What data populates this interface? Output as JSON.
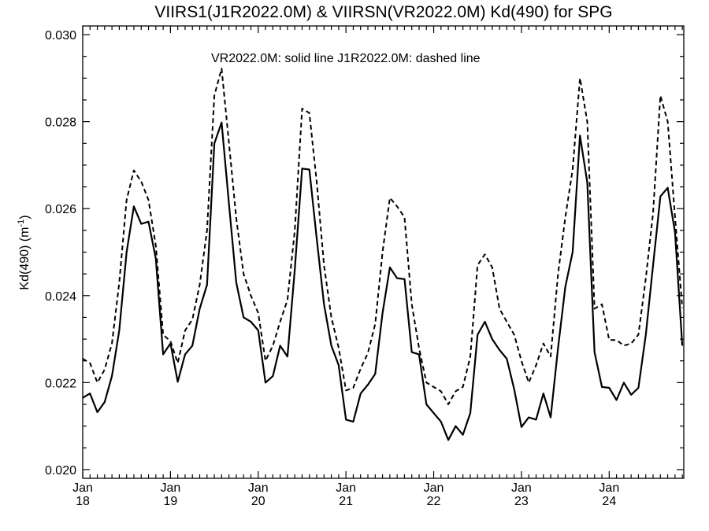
{
  "chart_data": {
    "type": "line",
    "title": "VIIRS1(J1R2022.0M) & VIIRSN(VR2022.0M)  Kd(490) for SPG",
    "annotation": "VR2022.0M: solid line   J1R2022.0M: dashed line",
    "ylabel": "Kd(490) (m",
    "ylabel_sup": "-1",
    "ylabel_close": ")",
    "ylim": [
      0.0198,
      0.0302
    ],
    "yticks": [
      "0.020",
      "0.022",
      "0.024",
      "0.026",
      "0.028",
      "0.030"
    ],
    "xlim": [
      2018.0,
      2024.85
    ],
    "xticks": [
      {
        "x": 2018,
        "month": "Jan",
        "year": "18"
      },
      {
        "x": 2019,
        "month": "Jan",
        "year": "19"
      },
      {
        "x": 2020,
        "month": "Jan",
        "year": "20"
      },
      {
        "x": 2021,
        "month": "Jan",
        "year": "21"
      },
      {
        "x": 2022,
        "month": "Jan",
        "year": "22"
      },
      {
        "x": 2023,
        "month": "Jan",
        "year": "23"
      },
      {
        "x": 2024,
        "month": "Jan",
        "year": "24"
      }
    ],
    "grid": false,
    "series": [
      {
        "name": "VR2022.0M",
        "style": "solid",
        "x": [
          2018.0,
          2018.083,
          2018.167,
          2018.25,
          2018.333,
          2018.417,
          2018.5,
          2018.583,
          2018.667,
          2018.75,
          2018.833,
          2018.917,
          2019.0,
          2019.083,
          2019.167,
          2019.25,
          2019.333,
          2019.417,
          2019.5,
          2019.583,
          2019.667,
          2019.75,
          2019.833,
          2019.917,
          2020.0,
          2020.083,
          2020.167,
          2020.25,
          2020.333,
          2020.417,
          2020.5,
          2020.583,
          2020.667,
          2020.75,
          2020.833,
          2020.917,
          2021.0,
          2021.083,
          2021.167,
          2021.25,
          2021.333,
          2021.417,
          2021.5,
          2021.583,
          2021.667,
          2021.75,
          2021.833,
          2021.917,
          2022.0,
          2022.083,
          2022.167,
          2022.25,
          2022.333,
          2022.417,
          2022.5,
          2022.583,
          2022.667,
          2022.75,
          2022.833,
          2022.917,
          2023.0,
          2023.083,
          2023.167,
          2023.25,
          2023.333,
          2023.417,
          2023.5,
          2023.583,
          2023.667,
          2023.75,
          2023.833,
          2023.917,
          2024.0,
          2024.083,
          2024.167,
          2024.25,
          2024.333,
          2024.417,
          2024.5,
          2024.583,
          2024.667,
          2024.75,
          2024.833
        ],
        "values": [
          0.02165,
          0.02175,
          0.02132,
          0.02155,
          0.02215,
          0.0232,
          0.025,
          0.02605,
          0.02565,
          0.0257,
          0.02485,
          0.02265,
          0.0229,
          0.02202,
          0.02265,
          0.02285,
          0.0237,
          0.02425,
          0.0275,
          0.02798,
          0.0261,
          0.0243,
          0.0235,
          0.0234,
          0.0232,
          0.022,
          0.02215,
          0.02285,
          0.0226,
          0.0246,
          0.02692,
          0.0269,
          0.0253,
          0.0238,
          0.02285,
          0.0224,
          0.02115,
          0.0211,
          0.02175,
          0.02195,
          0.0222,
          0.0236,
          0.02465,
          0.0244,
          0.02438,
          0.0227,
          0.02265,
          0.0215,
          0.0213,
          0.0211,
          0.02068,
          0.021,
          0.0208,
          0.0213,
          0.0231,
          0.0234,
          0.023,
          0.02275,
          0.02255,
          0.02185,
          0.02098,
          0.0212,
          0.02115,
          0.02175,
          0.0212,
          0.0228,
          0.0242,
          0.025,
          0.02768,
          0.0266,
          0.0227,
          0.0219,
          0.02188,
          0.0216,
          0.022,
          0.02172,
          0.02188,
          0.0231,
          0.0247,
          0.02628,
          0.02648,
          0.02545,
          0.02285
        ]
      },
      {
        "name": "J1R2022.0M",
        "style": "dashed",
        "x": [
          2018.0,
          2018.083,
          2018.167,
          2018.25,
          2018.333,
          2018.417,
          2018.5,
          2018.583,
          2018.667,
          2018.75,
          2018.833,
          2018.917,
          2019.0,
          2019.083,
          2019.167,
          2019.25,
          2019.333,
          2019.417,
          2019.5,
          2019.583,
          2019.667,
          2019.75,
          2019.833,
          2019.917,
          2020.0,
          2020.083,
          2020.167,
          2020.25,
          2020.333,
          2020.417,
          2020.5,
          2020.583,
          2020.667,
          2020.75,
          2020.833,
          2020.917,
          2021.0,
          2021.083,
          2021.167,
          2021.25,
          2021.333,
          2021.417,
          2021.5,
          2021.583,
          2021.667,
          2021.75,
          2021.833,
          2021.917,
          2022.0,
          2022.083,
          2022.167,
          2022.25,
          2022.333,
          2022.417,
          2022.5,
          2022.583,
          2022.667,
          2022.75,
          2022.833,
          2022.917,
          2023.0,
          2023.083,
          2023.167,
          2023.25,
          2023.333,
          2023.417,
          2023.5,
          2023.583,
          2023.667,
          2023.75,
          2023.833,
          2023.917,
          2024.0,
          2024.083,
          2024.167,
          2024.25,
          2024.333,
          2024.417,
          2024.5,
          2024.583,
          2024.667,
          2024.75,
          2024.833
        ],
        "values": [
          0.02255,
          0.02245,
          0.022,
          0.0223,
          0.0229,
          0.0243,
          0.0262,
          0.02688,
          0.02662,
          0.0262,
          0.02515,
          0.0231,
          0.02295,
          0.02245,
          0.0232,
          0.02345,
          0.02425,
          0.0255,
          0.0286,
          0.02922,
          0.0275,
          0.02578,
          0.0245,
          0.024,
          0.0236,
          0.0225,
          0.02285,
          0.0234,
          0.0239,
          0.0255,
          0.0283,
          0.0282,
          0.0266,
          0.0247,
          0.0235,
          0.0228,
          0.02182,
          0.02188,
          0.02232,
          0.02268,
          0.02335,
          0.025,
          0.02625,
          0.02605,
          0.0258,
          0.0238,
          0.0228,
          0.022,
          0.0219,
          0.0218,
          0.0215,
          0.0218,
          0.0219,
          0.0226,
          0.0247,
          0.02495,
          0.02465,
          0.0237,
          0.0234,
          0.0231,
          0.0225,
          0.022,
          0.0224,
          0.0229,
          0.0226,
          0.0245,
          0.0258,
          0.0269,
          0.029,
          0.028,
          0.0237,
          0.0238,
          0.02298,
          0.02298,
          0.02285,
          0.0229,
          0.0231,
          0.0244,
          0.0259,
          0.0286,
          0.028,
          0.0258,
          0.02372
        ]
      }
    ]
  }
}
